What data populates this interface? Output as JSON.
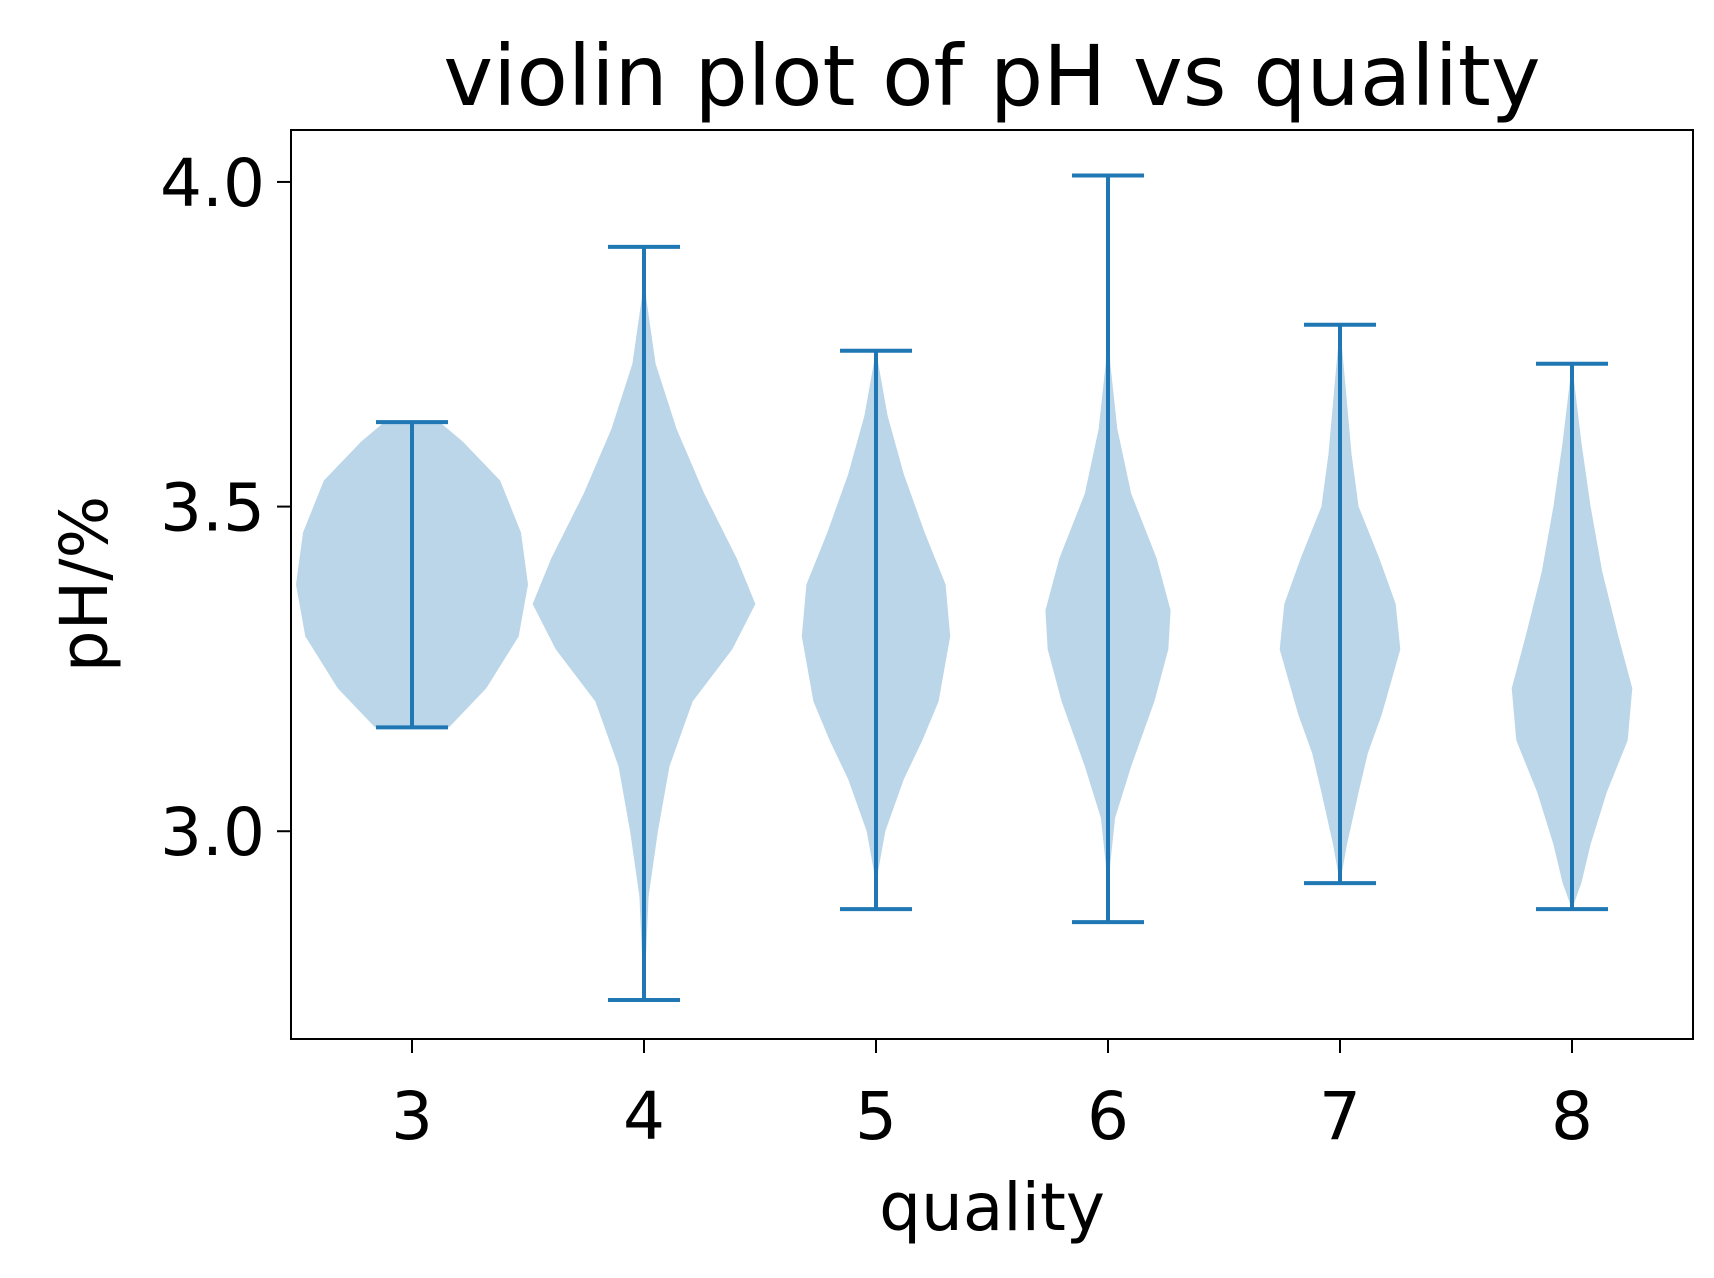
{
  "chart_data": {
    "type": "violin",
    "title": "violin plot of pH vs quality",
    "xlabel": "quality",
    "ylabel": "pH/%",
    "categories": [
      "3",
      "4",
      "5",
      "6",
      "7",
      "8"
    ],
    "ylim": [
      2.68,
      4.08
    ],
    "yticks": [
      {
        "value": 3.0,
        "label": "3.0"
      },
      {
        "value": 3.5,
        "label": "3.5"
      },
      {
        "value": 4.0,
        "label": "4.0"
      }
    ],
    "grid": false,
    "legend": "none",
    "colors": {
      "line": "#1f77b4",
      "fill": "#1f77b4",
      "fill_opacity": 0.3
    },
    "series": [
      {
        "category": "3",
        "min": 3.16,
        "max": 3.63,
        "profile": [
          [
            3.16,
            0.16
          ],
          [
            3.22,
            0.32
          ],
          [
            3.3,
            0.46
          ],
          [
            3.38,
            0.5
          ],
          [
            3.46,
            0.47
          ],
          [
            3.54,
            0.38
          ],
          [
            3.6,
            0.22
          ],
          [
            3.63,
            0.12
          ]
        ]
      },
      {
        "category": "4",
        "min": 2.74,
        "max": 3.9,
        "profile": [
          [
            2.74,
            0.0
          ],
          [
            2.9,
            0.02
          ],
          [
            3.0,
            0.06
          ],
          [
            3.1,
            0.11
          ],
          [
            3.2,
            0.21
          ],
          [
            3.28,
            0.38
          ],
          [
            3.35,
            0.48
          ],
          [
            3.42,
            0.4
          ],
          [
            3.52,
            0.26
          ],
          [
            3.62,
            0.14
          ],
          [
            3.72,
            0.05
          ],
          [
            3.82,
            0.01
          ],
          [
            3.9,
            0.0
          ]
        ]
      },
      {
        "category": "5",
        "min": 2.88,
        "max": 3.74,
        "profile": [
          [
            2.88,
            0.0
          ],
          [
            2.94,
            0.01
          ],
          [
            3.0,
            0.04
          ],
          [
            3.08,
            0.12
          ],
          [
            3.14,
            0.2
          ],
          [
            3.2,
            0.27
          ],
          [
            3.3,
            0.32
          ],
          [
            3.38,
            0.3
          ],
          [
            3.46,
            0.21
          ],
          [
            3.55,
            0.12
          ],
          [
            3.64,
            0.05
          ],
          [
            3.74,
            0.0
          ]
        ]
      },
      {
        "category": "6",
        "min": 2.86,
        "max": 4.01,
        "profile": [
          [
            2.86,
            0.0
          ],
          [
            2.95,
            0.01
          ],
          [
            3.02,
            0.03
          ],
          [
            3.1,
            0.1
          ],
          [
            3.2,
            0.2
          ],
          [
            3.28,
            0.26
          ],
          [
            3.34,
            0.27
          ],
          [
            3.42,
            0.21
          ],
          [
            3.52,
            0.1
          ],
          [
            3.62,
            0.04
          ],
          [
            3.72,
            0.01
          ],
          [
            3.85,
            0.0
          ],
          [
            4.01,
            0.0
          ]
        ]
      },
      {
        "category": "7",
        "min": 2.92,
        "max": 3.78,
        "profile": [
          [
            2.92,
            0.0
          ],
          [
            2.98,
            0.03
          ],
          [
            3.06,
            0.08
          ],
          [
            3.12,
            0.12
          ],
          [
            3.18,
            0.18
          ],
          [
            3.28,
            0.26
          ],
          [
            3.35,
            0.24
          ],
          [
            3.42,
            0.17
          ],
          [
            3.5,
            0.08
          ],
          [
            3.58,
            0.05
          ],
          [
            3.66,
            0.03
          ],
          [
            3.78,
            0.0
          ]
        ]
      },
      {
        "category": "8",
        "min": 2.88,
        "max": 3.72,
        "profile": [
          [
            2.88,
            0.0
          ],
          [
            2.92,
            0.04
          ],
          [
            2.98,
            0.08
          ],
          [
            3.06,
            0.15
          ],
          [
            3.14,
            0.24
          ],
          [
            3.22,
            0.26
          ],
          [
            3.3,
            0.2
          ],
          [
            3.4,
            0.13
          ],
          [
            3.5,
            0.08
          ],
          [
            3.6,
            0.04
          ],
          [
            3.72,
            0.0
          ]
        ]
      }
    ]
  }
}
